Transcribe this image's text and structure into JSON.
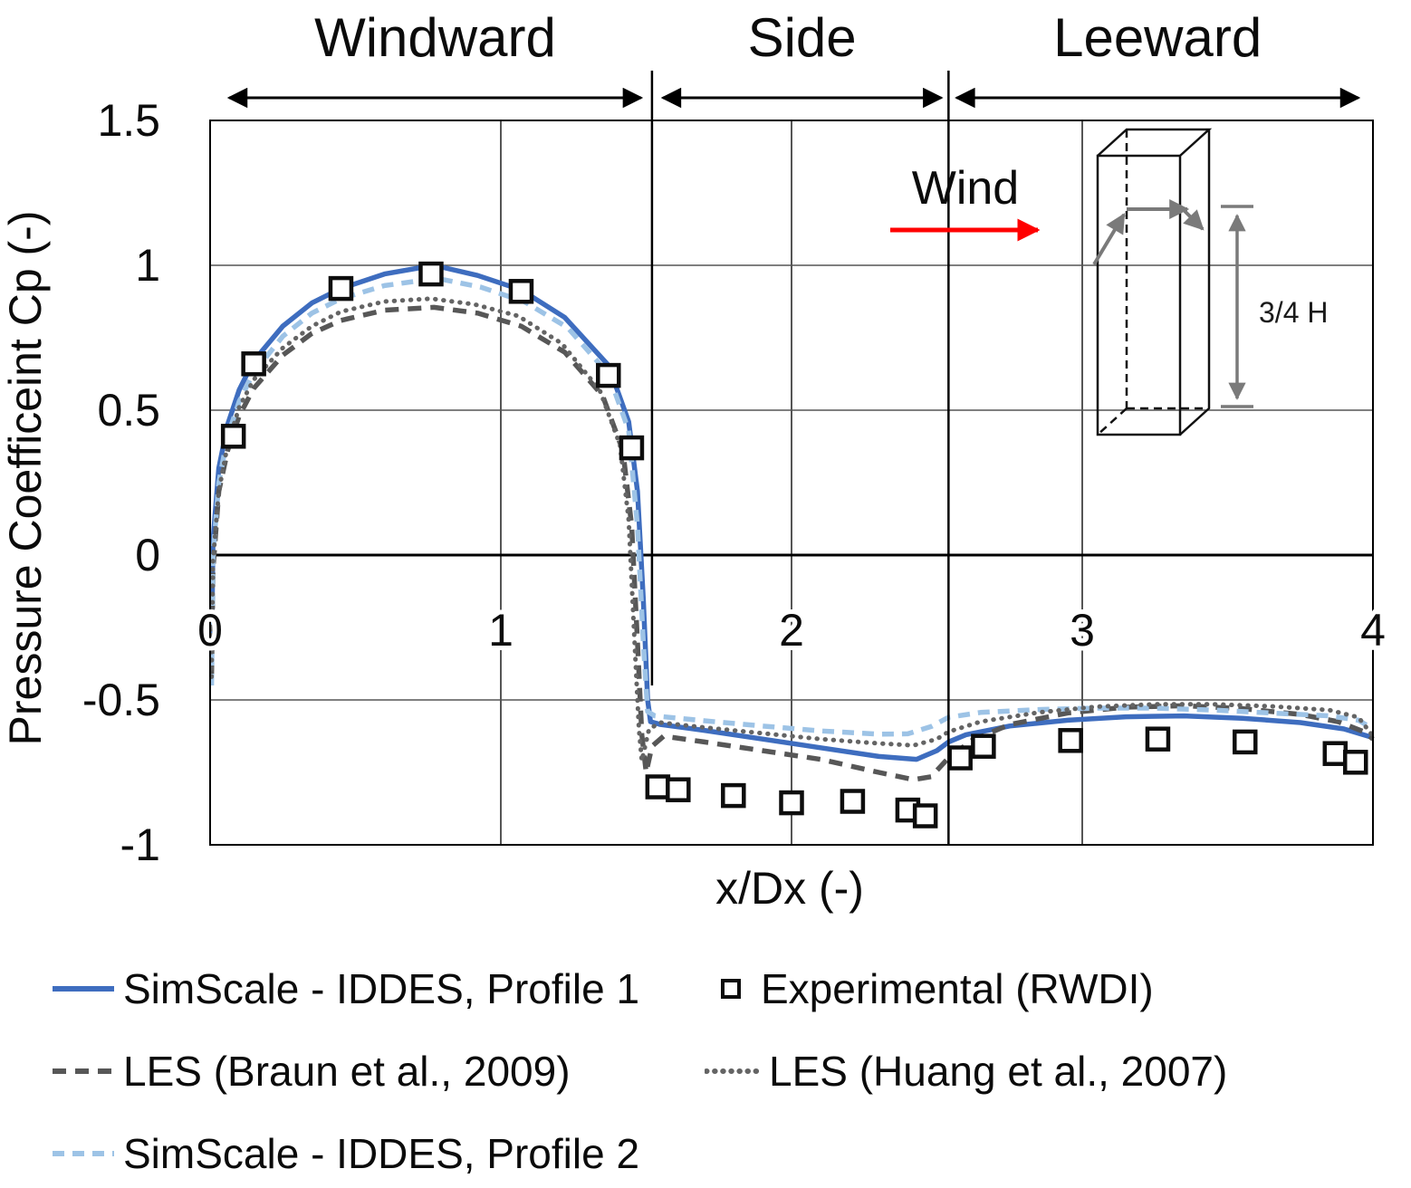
{
  "chart_data": {
    "type": "line",
    "title": "",
    "xlabel": "x/Dx (-)",
    "ylabel": "Pressure Coefficeint Cp (-)",
    "xlim": [
      0,
      4
    ],
    "ylim": [
      -1,
      1.5
    ],
    "xticks": [
      0,
      1,
      2,
      3,
      4
    ],
    "yticks": [
      1.5,
      1,
      0.5,
      0,
      -0.5,
      -1
    ],
    "grid": true,
    "legend_position": "below",
    "regions": [
      {
        "label": "Windward",
        "from": 0,
        "to": 1.52
      },
      {
        "label": "Side",
        "from": 1.52,
        "to": 2.54
      },
      {
        "label": "Leeward",
        "from": 2.54,
        "to": 4
      }
    ],
    "annotations": {
      "wind_label": "Wind",
      "wind_arrow_color": "#FF0000",
      "dim_label": "3/4 H",
      "sketch_color": "#7a7a7a"
    },
    "series": [
      {
        "name": "SimScale - IDDES, Profile 1",
        "style": "solid",
        "color": "#3E6DBF",
        "width": 5.5,
        "points": [
          [
            0.005,
            -0.35
          ],
          [
            0.01,
            0.05
          ],
          [
            0.03,
            0.3
          ],
          [
            0.06,
            0.45
          ],
          [
            0.1,
            0.57
          ],
          [
            0.15,
            0.67
          ],
          [
            0.25,
            0.79
          ],
          [
            0.35,
            0.87
          ],
          [
            0.45,
            0.92
          ],
          [
            0.6,
            0.97
          ],
          [
            0.77,
            1.0
          ],
          [
            0.92,
            0.965
          ],
          [
            1.07,
            0.915
          ],
          [
            1.22,
            0.82
          ],
          [
            1.37,
            0.655
          ],
          [
            1.44,
            0.46
          ],
          [
            1.47,
            0.22
          ],
          [
            1.49,
            -0.15
          ],
          [
            1.505,
            -0.5
          ],
          [
            1.515,
            -0.575
          ],
          [
            1.55,
            -0.585
          ],
          [
            1.7,
            -0.605
          ],
          [
            1.9,
            -0.635
          ],
          [
            2.1,
            -0.665
          ],
          [
            2.3,
            -0.695
          ],
          [
            2.43,
            -0.705
          ],
          [
            2.5,
            -0.675
          ],
          [
            2.54,
            -0.645
          ],
          [
            2.6,
            -0.62
          ],
          [
            2.75,
            -0.59
          ],
          [
            2.95,
            -0.57
          ],
          [
            3.15,
            -0.558
          ],
          [
            3.35,
            -0.555
          ],
          [
            3.55,
            -0.563
          ],
          [
            3.75,
            -0.578
          ],
          [
            3.9,
            -0.6
          ],
          [
            4.0,
            -0.63
          ]
        ]
      },
      {
        "name": "LES (Braun et al., 2009)",
        "style": "dashed",
        "color": "#575757",
        "width": 5.5,
        "points": [
          [
            0.005,
            -0.42
          ],
          [
            0.01,
            -0.05
          ],
          [
            0.03,
            0.22
          ],
          [
            0.06,
            0.36
          ],
          [
            0.1,
            0.48
          ],
          [
            0.15,
            0.575
          ],
          [
            0.25,
            0.69
          ],
          [
            0.35,
            0.765
          ],
          [
            0.45,
            0.81
          ],
          [
            0.6,
            0.845
          ],
          [
            0.77,
            0.855
          ],
          [
            0.92,
            0.835
          ],
          [
            1.07,
            0.79
          ],
          [
            1.22,
            0.7
          ],
          [
            1.35,
            0.55
          ],
          [
            1.42,
            0.36
          ],
          [
            1.45,
            0.1
          ],
          [
            1.47,
            -0.3
          ],
          [
            1.485,
            -0.62
          ],
          [
            1.5,
            -0.75
          ],
          [
            1.52,
            -0.66
          ],
          [
            1.56,
            -0.625
          ],
          [
            1.7,
            -0.645
          ],
          [
            1.9,
            -0.675
          ],
          [
            2.1,
            -0.705
          ],
          [
            2.3,
            -0.75
          ],
          [
            2.42,
            -0.775
          ],
          [
            2.48,
            -0.765
          ],
          [
            2.54,
            -0.7
          ],
          [
            2.62,
            -0.64
          ],
          [
            2.75,
            -0.585
          ],
          [
            2.95,
            -0.545
          ],
          [
            3.15,
            -0.525
          ],
          [
            3.35,
            -0.52
          ],
          [
            3.55,
            -0.53
          ],
          [
            3.75,
            -0.55
          ],
          [
            3.88,
            -0.575
          ],
          [
            3.97,
            -0.61
          ],
          [
            4.0,
            -0.635
          ]
        ]
      },
      {
        "name": "SimScale - IDDES, Profile 2",
        "style": "dashed",
        "color": "#9DC3E6",
        "width": 5.5,
        "points": [
          [
            0.005,
            -0.45
          ],
          [
            0.01,
            0.0
          ],
          [
            0.03,
            0.25
          ],
          [
            0.06,
            0.41
          ],
          [
            0.1,
            0.53
          ],
          [
            0.15,
            0.63
          ],
          [
            0.25,
            0.755
          ],
          [
            0.35,
            0.835
          ],
          [
            0.45,
            0.885
          ],
          [
            0.6,
            0.93
          ],
          [
            0.78,
            0.955
          ],
          [
            0.93,
            0.925
          ],
          [
            1.08,
            0.875
          ],
          [
            1.23,
            0.785
          ],
          [
            1.37,
            0.625
          ],
          [
            1.44,
            0.43
          ],
          [
            1.47,
            0.1
          ],
          [
            1.49,
            -0.3
          ],
          [
            1.505,
            -0.54
          ],
          [
            1.53,
            -0.555
          ],
          [
            1.7,
            -0.572
          ],
          [
            1.9,
            -0.59
          ],
          [
            2.1,
            -0.607
          ],
          [
            2.3,
            -0.618
          ],
          [
            2.4,
            -0.617
          ],
          [
            2.48,
            -0.592
          ],
          [
            2.54,
            -0.56
          ],
          [
            2.65,
            -0.543
          ],
          [
            2.85,
            -0.533
          ],
          [
            3.05,
            -0.528
          ],
          [
            3.25,
            -0.528
          ],
          [
            3.45,
            -0.535
          ],
          [
            3.65,
            -0.545
          ],
          [
            3.85,
            -0.555
          ],
          [
            3.95,
            -0.57
          ],
          [
            4.0,
            -0.6
          ]
        ]
      },
      {
        "name": "LES (Huang et al., 2007)",
        "style": "dotted",
        "color": "#646464",
        "width": 5,
        "points": [
          [
            0.005,
            -0.42
          ],
          [
            0.01,
            -0.02
          ],
          [
            0.03,
            0.22
          ],
          [
            0.06,
            0.38
          ],
          [
            0.1,
            0.51
          ],
          [
            0.15,
            0.605
          ],
          [
            0.25,
            0.715
          ],
          [
            0.35,
            0.79
          ],
          [
            0.45,
            0.84
          ],
          [
            0.6,
            0.875
          ],
          [
            0.76,
            0.885
          ],
          [
            0.91,
            0.865
          ],
          [
            1.06,
            0.825
          ],
          [
            1.21,
            0.73
          ],
          [
            1.34,
            0.57
          ],
          [
            1.41,
            0.38
          ],
          [
            1.44,
            0.12
          ],
          [
            1.46,
            -0.3
          ],
          [
            1.475,
            -0.6
          ],
          [
            1.485,
            -0.71
          ],
          [
            1.51,
            -0.6
          ],
          [
            1.55,
            -0.578
          ],
          [
            1.7,
            -0.595
          ],
          [
            1.9,
            -0.615
          ],
          [
            2.1,
            -0.635
          ],
          [
            2.3,
            -0.65
          ],
          [
            2.42,
            -0.657
          ],
          [
            2.5,
            -0.635
          ],
          [
            2.54,
            -0.61
          ],
          [
            2.65,
            -0.575
          ],
          [
            2.85,
            -0.543
          ],
          [
            3.05,
            -0.523
          ],
          [
            3.25,
            -0.515
          ],
          [
            3.45,
            -0.515
          ],
          [
            3.65,
            -0.522
          ],
          [
            3.85,
            -0.535
          ],
          [
            3.95,
            -0.56
          ],
          [
            4.0,
            -0.625
          ]
        ]
      },
      {
        "name": "Experimental (RWDI)",
        "style": "markers",
        "marker": "square",
        "color": "#0d0d0d",
        "points": [
          [
            0.08,
            0.41
          ],
          [
            0.15,
            0.66
          ],
          [
            0.45,
            0.92
          ],
          [
            0.76,
            0.97
          ],
          [
            1.07,
            0.91
          ],
          [
            1.37,
            0.62
          ],
          [
            1.45,
            0.37
          ],
          [
            1.54,
            -0.8
          ],
          [
            1.61,
            -0.81
          ],
          [
            1.8,
            -0.83
          ],
          [
            2.0,
            -0.855
          ],
          [
            2.21,
            -0.85
          ],
          [
            2.4,
            -0.88
          ],
          [
            2.46,
            -0.9
          ],
          [
            2.58,
            -0.7
          ],
          [
            2.66,
            -0.66
          ],
          [
            2.96,
            -0.64
          ],
          [
            3.26,
            -0.635
          ],
          [
            3.56,
            -0.645
          ],
          [
            3.87,
            -0.685
          ],
          [
            3.94,
            -0.715
          ]
        ]
      }
    ]
  }
}
